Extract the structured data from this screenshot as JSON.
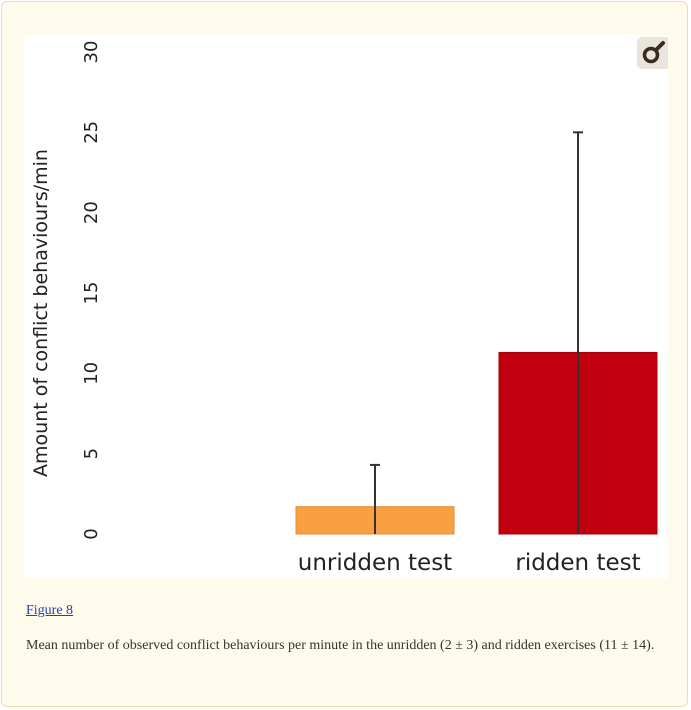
{
  "figure": {
    "link_label": "Figure 8",
    "caption": "Mean number of observed conflict behaviours per minute in the unridden (2 ± 3) and ridden exercises (11 ± 14)."
  },
  "zoom_icon": "magnifier-icon",
  "chart_data": {
    "type": "bar",
    "categories": [
      "unridden test",
      "ridden test"
    ],
    "values": [
      1.7,
      11.3
    ],
    "error_upper": [
      4.3,
      25.0
    ],
    "colors": [
      "#f9a142",
      "#c0000f"
    ],
    "ylabel": "Amount of conflict behaviours/min",
    "xlabel": "",
    "title": "",
    "ylim": [
      0,
      30
    ],
    "yticks": [
      0,
      5,
      10,
      15,
      20,
      25,
      30
    ],
    "grid": false,
    "legend": "none"
  }
}
